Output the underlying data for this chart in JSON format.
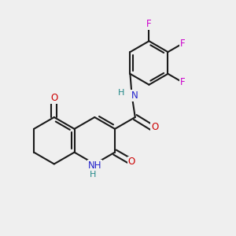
{
  "background_color": "#efefef",
  "bond_color": "#1a1a1a",
  "O_color": "#cc0000",
  "N_color": "#2222cc",
  "F_color": "#cc00cc",
  "H_color": "#228888",
  "figsize": [
    3.0,
    3.0
  ],
  "dpi": 100,
  "lw": 1.5,
  "fs": 8.5,
  "bl": 0.3,
  "xlim": [
    0.0,
    3.0
  ],
  "ylim": [
    0.0,
    3.0
  ]
}
